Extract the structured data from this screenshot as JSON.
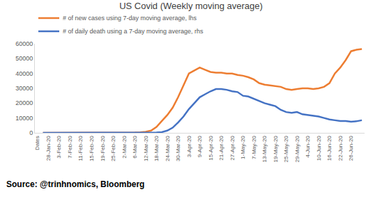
{
  "chart_data": {
    "type": "line",
    "title": "US Covid (Weekly moving average)",
    "categories": [
      "Dates",
      null,
      "28-Jan-20",
      null,
      "3-Feb-20",
      null,
      "7-Feb-20",
      null,
      "11-Feb-20",
      null,
      "15-Feb-20",
      null,
      "19-Feb-20",
      null,
      "25-Feb-20",
      null,
      "2-Mar-20",
      null,
      "6-Mar-20",
      null,
      "12-Mar-20",
      null,
      "18-Mar-20",
      null,
      "24-Mar-20",
      null,
      "30-Mar-20",
      null,
      "3-Apr-20",
      null,
      "9-Apr-20",
      null,
      "15-Apr-20",
      null,
      "21-Apr-20",
      null,
      "27-Apr-20",
      null,
      "1-May-20",
      null,
      "7-May-20",
      null,
      "13-May-20",
      null,
      "19-May-20",
      null,
      "25-May-20",
      null,
      "29-May-20",
      null,
      "4-Jun-20",
      null,
      "10-Jun-20",
      null,
      "16-Jun-20",
      null,
      "22-Jun-20",
      null,
      "26-Jun-20",
      null,
      null
    ],
    "series": [
      {
        "name": "# of new cases using 7-day moving average, lhs",
        "color": "#ED7D31",
        "values": [
          null,
          0,
          0,
          0,
          0,
          0,
          0,
          0,
          0,
          0,
          0,
          0,
          0,
          0,
          0,
          0,
          100,
          150,
          250,
          400,
          700,
          1500,
          4000,
          8000,
          12000,
          17000,
          24000,
          32000,
          40000,
          42000,
          44000,
          42500,
          41000,
          40500,
          40500,
          40000,
          40000,
          39000,
          38500,
          37500,
          36000,
          33500,
          32500,
          32000,
          31500,
          31000,
          29500,
          29000,
          29500,
          30000,
          30000,
          29500,
          30000,
          31000,
          33500,
          40000,
          44000,
          49000,
          55000,
          56000,
          56500
        ]
      },
      {
        "name": "# of daily death using a 7-day moving average, rhs",
        "color": "#4472C4",
        "values": [
          null,
          0,
          0,
          0,
          0,
          0,
          0,
          0,
          0,
          0,
          0,
          0,
          0,
          0,
          0,
          0,
          0,
          0,
          0,
          20,
          50,
          100,
          200,
          500,
          1500,
          3500,
          7000,
          11000,
          16000,
          20000,
          24000,
          26000,
          28000,
          29500,
          29500,
          29000,
          28000,
          27500,
          25000,
          24500,
          23000,
          21500,
          20000,
          19000,
          18000,
          15500,
          14000,
          13500,
          14000,
          12500,
          12000,
          11500,
          11000,
          10000,
          9000,
          8500,
          8000,
          8000,
          7500,
          7800,
          8500
        ]
      }
    ],
    "ylim": [
      0,
      60000
    ],
    "yticks": [
      0,
      10000,
      20000,
      30000,
      40000,
      50000,
      60000
    ],
    "grid": false,
    "legend": "top",
    "annotations": [
      "Source: @trinhnomics, Bloomberg"
    ]
  }
}
